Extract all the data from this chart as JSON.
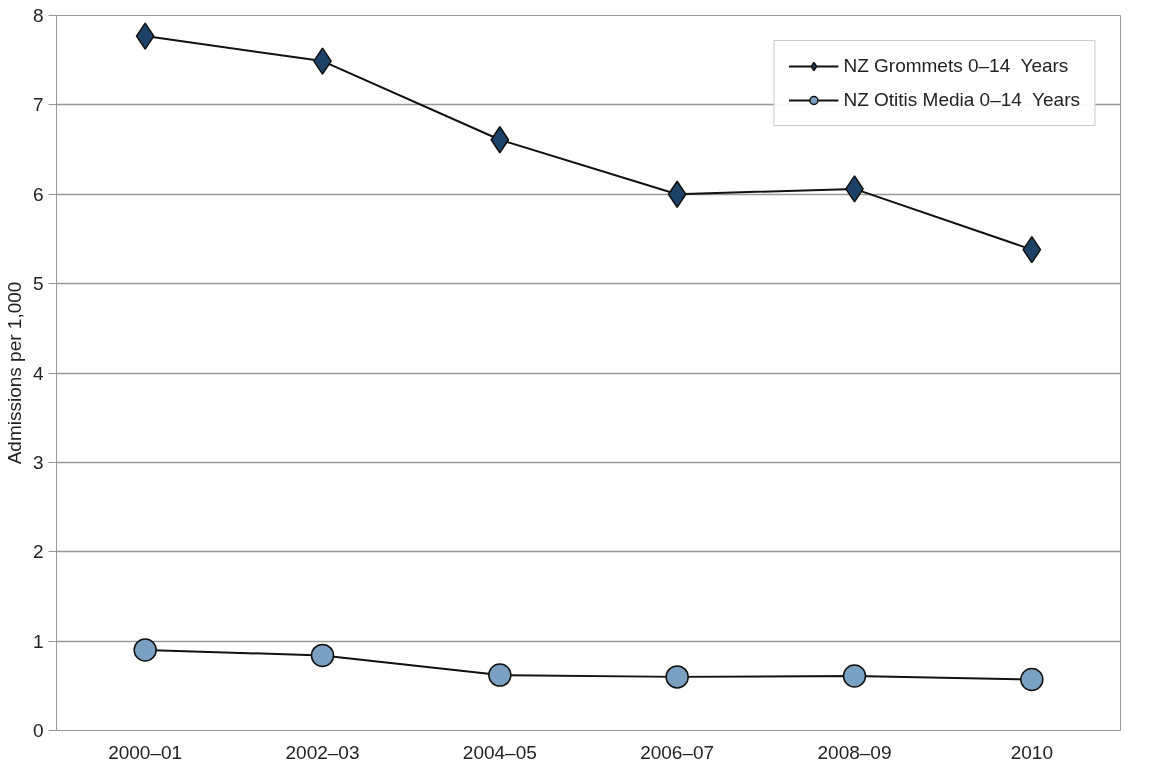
{
  "chart_data": {
    "type": "line",
    "ylabel": "Admissions per 1,000",
    "categories": [
      "2000–01",
      "2002–03",
      "2004–05",
      "2006–07",
      "2008–09",
      "2010"
    ],
    "series": [
      {
        "name": "NZ Grommets 0–14  Years",
        "color": "#1d4267",
        "marker": "diamond",
        "values": [
          7.77,
          7.49,
          6.61,
          6.0,
          6.06,
          5.38
        ]
      },
      {
        "name": "NZ Otitis Media 0–14  Years",
        "color": "#7aa0c2",
        "marker": "circle",
        "values": [
          0.9,
          0.84,
          0.62,
          0.6,
          0.61,
          0.57
        ]
      }
    ],
    "ylim": [
      0,
      8
    ],
    "yticks": [
      0,
      1,
      2,
      3,
      4,
      5,
      6,
      7,
      8
    ],
    "grid": "y",
    "legend": "top right",
    "line_style": "solid"
  }
}
